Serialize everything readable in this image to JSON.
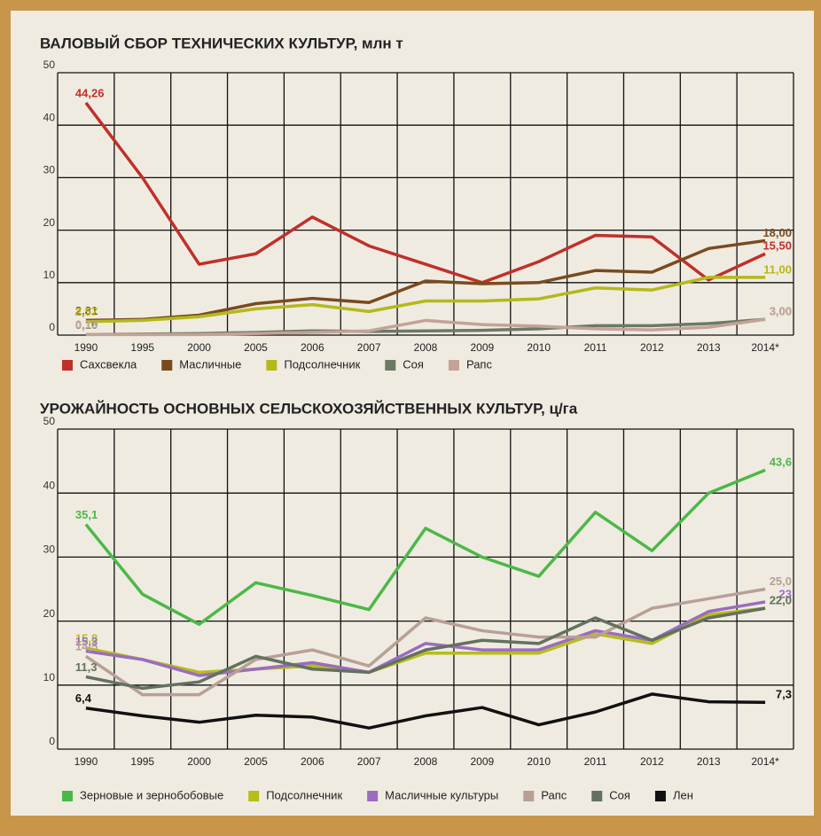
{
  "chart_data": [
    {
      "type": "line",
      "title": "ВАЛОВЫЙ СБОР ТЕХНИЧЕСКИХ КУЛЬТУР, млн т",
      "categories": [
        "1990",
        "1995",
        "2000",
        "2005",
        "2006",
        "2007",
        "2008",
        "2009",
        "2010",
        "2011",
        "2012",
        "2013",
        "2014*"
      ],
      "ylim": [
        0,
        50
      ],
      "yticks": [
        0,
        10,
        20,
        30,
        40,
        50
      ],
      "grid": true,
      "legend": "bottom",
      "series": [
        {
          "name": "Сахсвекла",
          "color": "#c0302a",
          "values": [
            44.26,
            30,
            13.5,
            15.5,
            22.5,
            17,
            13.5,
            10,
            14,
            19,
            18.7,
            10.5,
            15.5
          ],
          "value_labels": [
            "44,26",
            null,
            null,
            null,
            null,
            null,
            null,
            null,
            null,
            null,
            null,
            null,
            "15,50"
          ]
        },
        {
          "name": "Масличные",
          "color": "#7a4a1e",
          "values": [
            2.81,
            3,
            3.8,
            6,
            7,
            6.2,
            10.3,
            9.8,
            10,
            12.3,
            12,
            16.5,
            18
          ],
          "value_labels": [
            "2,81",
            null,
            null,
            null,
            null,
            null,
            null,
            null,
            null,
            null,
            null,
            null,
            "18,00"
          ]
        },
        {
          "name": "Подсолнечник",
          "color": "#b5b81a",
          "values": [
            2.57,
            2.8,
            3.5,
            5,
            5.8,
            4.5,
            6.5,
            6.5,
            6.9,
            9,
            8.6,
            11,
            11
          ],
          "value_labels": [
            "2,57",
            null,
            null,
            null,
            null,
            null,
            null,
            null,
            null,
            null,
            null,
            null,
            "11,00"
          ]
        },
        {
          "name": "Соя",
          "color": "#6b7a63",
          "values": [
            0.1,
            0.2,
            0.3,
            0.5,
            0.8,
            0.7,
            0.8,
            0.9,
            1.2,
            1.8,
            1.8,
            2.2,
            3
          ],
          "value_labels": [
            "0,10",
            null,
            null,
            null,
            null,
            null,
            null,
            null,
            null,
            null,
            null,
            null,
            "3,00"
          ]
        },
        {
          "name": "Рапс",
          "color": "#c4a298",
          "values": [
            0.13,
            0.1,
            0.1,
            0.3,
            0.5,
            0.8,
            2.8,
            2,
            1.7,
            1.2,
            1,
            1.5,
            3
          ],
          "value_labels": [
            "0,13",
            null,
            null,
            null,
            null,
            null,
            null,
            null,
            null,
            null,
            null,
            null,
            "3,00"
          ]
        }
      ]
    },
    {
      "type": "line",
      "title": "УРОЖАЙНОСТЬ ОСНОВНЫХ СЕЛЬСКОХОЗЯЙСТВЕННЫХ КУЛЬТУР, ц/га",
      "categories": [
        "1990",
        "1995",
        "2000",
        "2005",
        "2006",
        "2007",
        "2008",
        "2009",
        "2010",
        "2011",
        "2012",
        "2013",
        "2014*"
      ],
      "ylim": [
        0,
        50
      ],
      "yticks": [
        0,
        10,
        20,
        30,
        40,
        50
      ],
      "grid": true,
      "legend": "bottom",
      "series": [
        {
          "name": "Зерновые и зернобобовые",
          "color": "#4cb848",
          "values": [
            35.1,
            24.2,
            19.5,
            26,
            24,
            21.8,
            34.5,
            30,
            27,
            37,
            31,
            40,
            43.6
          ],
          "value_labels": [
            "35,1",
            null,
            null,
            null,
            null,
            null,
            null,
            null,
            null,
            null,
            null,
            null,
            "43,6"
          ]
        },
        {
          "name": "Подсолнечник",
          "color": "#b6be1a",
          "values": [
            15.8,
            14,
            12,
            12.5,
            13,
            12,
            15,
            15,
            15,
            18,
            16.5,
            21,
            22
          ],
          "value_labels": [
            "15,8",
            null,
            null,
            null,
            null,
            null,
            null,
            null,
            null,
            null,
            null,
            null,
            "22,0"
          ]
        },
        {
          "name": "Масличные культуры",
          "color": "#9b6cc0",
          "values": [
            15.3,
            14,
            11.5,
            12.5,
            13.5,
            12,
            16.5,
            15.5,
            15.5,
            18.5,
            17,
            21.5,
            23
          ],
          "value_labels": [
            "15,3",
            null,
            null,
            null,
            null,
            null,
            null,
            null,
            null,
            null,
            null,
            null,
            "23"
          ]
        },
        {
          "name": "Рапс",
          "color": "#b8a096",
          "values": [
            14.5,
            8.5,
            8.5,
            14,
            15.5,
            13,
            20.5,
            18.5,
            17.5,
            17.5,
            22,
            23.5,
            25
          ],
          "value_labels": [
            "14,5",
            null,
            null,
            null,
            null,
            null,
            null,
            null,
            null,
            null,
            null,
            null,
            "25,0"
          ]
        },
        {
          "name": "Соя",
          "color": "#637160",
          "values": [
            11.3,
            9.5,
            10.5,
            14.5,
            12.5,
            12,
            15.5,
            17,
            16.5,
            20.5,
            17,
            20.5,
            22
          ],
          "value_labels": [
            "11,3",
            null,
            null,
            null,
            null,
            null,
            null,
            null,
            null,
            null,
            null,
            null,
            "22,0"
          ]
        },
        {
          "name": "Лен",
          "color": "#111111",
          "values": [
            6.4,
            5.2,
            4.2,
            5.3,
            5,
            3.3,
            5.2,
            6.5,
            3.8,
            5.8,
            8.6,
            7.4,
            7.3
          ],
          "value_labels": [
            "6,4",
            null,
            null,
            null,
            null,
            null,
            null,
            null,
            null,
            null,
            null,
            null,
            "7,3"
          ]
        }
      ]
    }
  ]
}
